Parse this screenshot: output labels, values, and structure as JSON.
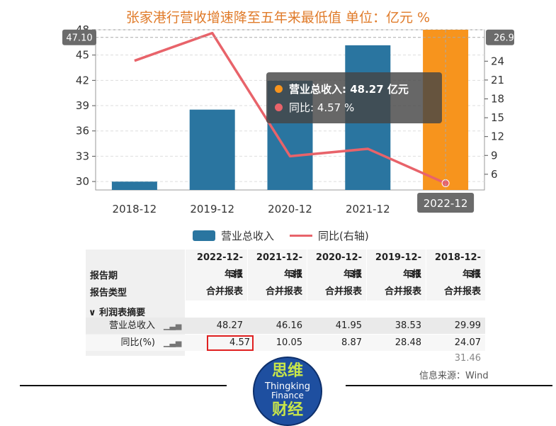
{
  "chart_data": {
    "type": "bar",
    "title": "张家港行营收增速降至五年来最低值 单位：亿元 %",
    "categories": [
      "2018-12",
      "2019-12",
      "2020-12",
      "2021-12",
      "2022-12"
    ],
    "series": [
      {
        "name": "营业总收入",
        "type": "bar",
        "axis": "left",
        "values": [
          29.99,
          38.53,
          41.95,
          46.16,
          48.27
        ],
        "color": "#2a75a0",
        "highlight_color": "#f7941d"
      },
      {
        "name": "同比(右轴)",
        "type": "line",
        "axis": "right",
        "values": [
          24.07,
          28.48,
          8.87,
          10.05,
          4.57
        ],
        "color": "#e8636a"
      }
    ],
    "left_axis": {
      "ylim": [
        29,
        48
      ],
      "ticks": [
        30,
        33,
        36,
        39,
        42,
        45,
        48
      ],
      "pointer_label": "47.10"
    },
    "right_axis": {
      "ylim": [
        3.5,
        29
      ],
      "ticks": [
        6,
        9,
        12,
        15,
        18,
        21,
        24
      ],
      "pointer_label": "26.9"
    },
    "x_pointer_label": "2022-12",
    "grid": true,
    "legend": "bottom"
  },
  "tooltip": {
    "revenue_label": "营业总收入: 48.27  亿元",
    "growth_label": "同比: 4.57  %"
  },
  "table": {
    "header_row1_label": "报告期",
    "header_row2_label": "报告类型",
    "section_label": "∨ 利润表摘要",
    "columns": [
      {
        "date": "2022-12-31",
        "kind": "年报",
        "type": "合并报表"
      },
      {
        "date": "2021-12-31",
        "kind": "年报",
        "type": "合并报表"
      },
      {
        "date": "2020-12-31",
        "kind": "年报",
        "type": "合并报表"
      },
      {
        "date": "2019-12-31",
        "kind": "年报",
        "type": "合并报表"
      },
      {
        "date": "2018-12-31",
        "kind": "年报",
        "type": "合并报表"
      }
    ],
    "rows": [
      {
        "label": "营业总收入",
        "values": [
          "48.27",
          "46.16",
          "41.95",
          "38.53",
          "29.99"
        ]
      },
      {
        "label": "同比(%)",
        "values": [
          "4.57",
          "10.05",
          "8.87",
          "28.48",
          "24.07"
        ]
      }
    ],
    "partial_value": "31.46"
  },
  "source": "信息来源：Wind",
  "logo": {
    "top": "思维",
    "middle1": "Thingking",
    "middle2": "Finance",
    "bottom": "财经"
  },
  "colors": {
    "title": "#e07b2a",
    "bar": "#2a75a0",
    "bar_highlight": "#f7941d",
    "line": "#e8636a",
    "tooltip_bg": "#464646",
    "logo_bg": "#1e4fa0",
    "logo_text": "#c8e64a"
  }
}
